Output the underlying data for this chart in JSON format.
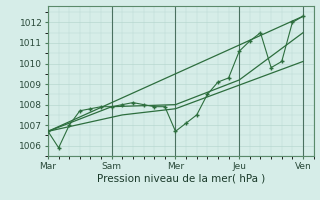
{
  "bg_color": "#d6ede8",
  "grid_color": "#b8d8d0",
  "line_color": "#2d6e3e",
  "line_color2": "#3a7a4a",
  "title": "Pression niveau de la mer( hPa )",
  "xtick_labels": [
    "Mar",
    "Sam",
    "Mer",
    "Jeu",
    "Ven"
  ],
  "xtick_positions": [
    0.5,
    3.5,
    6.5,
    9.5,
    12.5
  ],
  "vline_positions": [
    0.5,
    3.5,
    6.5,
    9.5,
    12.5
  ],
  "ylim": [
    1005.5,
    1012.8
  ],
  "yticks": [
    1006,
    1007,
    1008,
    1009,
    1010,
    1011,
    1012
  ],
  "series_main": {
    "x": [
      0.5,
      1.0,
      1.5,
      2.0,
      2.5,
      3.0,
      3.5,
      4.0,
      4.5,
      5.0,
      5.5,
      6.0,
      6.5,
      7.0,
      7.5,
      8.0,
      8.5,
      9.0,
      9.5,
      10.0,
      10.5,
      11.0,
      11.5,
      12.0,
      12.5
    ],
    "y": [
      1006.7,
      1005.9,
      1007.0,
      1007.7,
      1007.8,
      1007.9,
      1007.9,
      1008.0,
      1008.1,
      1008.0,
      1007.9,
      1007.9,
      1006.7,
      1007.1,
      1007.5,
      1008.5,
      1009.1,
      1009.3,
      1010.6,
      1011.1,
      1011.5,
      1009.8,
      1010.1,
      1012.0,
      1012.3
    ]
  },
  "series_upper": {
    "x": [
      0.5,
      12.5
    ],
    "y": [
      1006.7,
      1012.3
    ]
  },
  "series_lower": {
    "x": [
      0.5,
      4.0,
      6.5,
      12.5
    ],
    "y": [
      1006.7,
      1007.5,
      1007.8,
      1010.1
    ]
  },
  "series_mid": {
    "x": [
      0.5,
      3.5,
      6.5,
      9.5,
      12.5
    ],
    "y": [
      1006.7,
      1007.9,
      1008.0,
      1009.2,
      1011.5
    ]
  }
}
